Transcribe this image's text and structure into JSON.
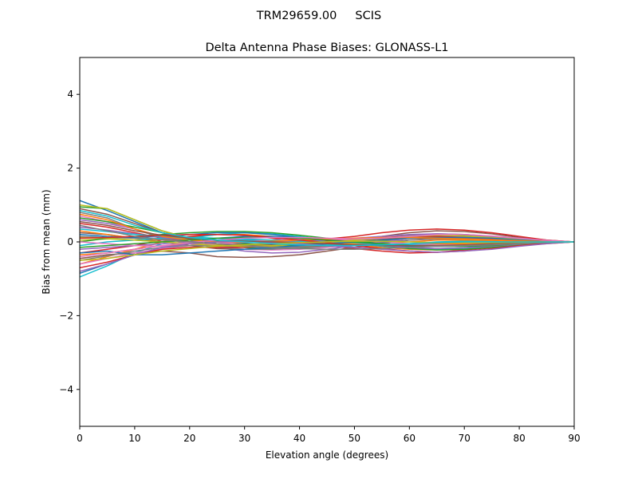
{
  "chart_data": {
    "type": "line",
    "suptitle": "TRM29659.00     SCIS",
    "title": "Delta Antenna Phase Biases: GLONASS-L1",
    "xlabel": "Elevation angle (degrees)",
    "ylabel": "Bias from mean (mm)",
    "xlim": [
      0,
      90
    ],
    "ylim": [
      -5,
      5
    ],
    "xticks": [
      0,
      10,
      20,
      30,
      40,
      50,
      60,
      70,
      80,
      90
    ],
    "yticks": [
      -4,
      -2,
      0,
      2,
      4
    ],
    "ytick_labels": [
      "−4",
      "−2",
      "0",
      "2",
      "4"
    ],
    "grid": false,
    "legend": "none",
    "x": [
      0,
      5,
      10,
      15,
      20,
      25,
      30,
      35,
      40,
      45,
      50,
      55,
      60,
      65,
      70,
      75,
      80,
      85,
      90
    ],
    "series": [
      {
        "color": "#1f77b4",
        "values": [
          1.12,
          0.85,
          0.55,
          0.25,
          0.05,
          -0.1,
          -0.15,
          -0.18,
          -0.15,
          -0.1,
          -0.05,
          0.02,
          0.1,
          0.15,
          0.14,
          0.1,
          0.05,
          0.02,
          0.0
        ]
      },
      {
        "color": "#ff7f0e",
        "values": [
          -0.6,
          -0.4,
          -0.2,
          0.0,
          0.12,
          0.2,
          0.2,
          0.15,
          0.08,
          0.0,
          -0.08,
          -0.15,
          -0.2,
          -0.22,
          -0.2,
          -0.15,
          -0.1,
          -0.05,
          0.0
        ]
      },
      {
        "color": "#2ca02c",
        "values": [
          0.95,
          0.9,
          0.6,
          0.3,
          0.1,
          -0.05,
          -0.15,
          -0.2,
          -0.18,
          -0.12,
          -0.05,
          0.05,
          0.15,
          0.2,
          0.18,
          0.12,
          0.06,
          0.02,
          0.0
        ]
      },
      {
        "color": "#d62728",
        "values": [
          -0.3,
          -0.2,
          -0.1,
          0.05,
          0.15,
          0.2,
          0.18,
          0.1,
          0.0,
          -0.1,
          -0.18,
          -0.25,
          -0.3,
          -0.28,
          -0.22,
          -0.15,
          -0.08,
          -0.03,
          0.0
        ]
      },
      {
        "color": "#9467bd",
        "values": [
          0.6,
          0.5,
          0.35,
          0.15,
          0.0,
          -0.15,
          -0.25,
          -0.3,
          -0.28,
          -0.2,
          -0.1,
          0.0,
          0.1,
          0.15,
          0.14,
          0.1,
          0.06,
          0.02,
          0.0
        ]
      },
      {
        "color": "#8c564b",
        "values": [
          0.25,
          0.2,
          0.1,
          0.0,
          -0.1,
          -0.18,
          -0.2,
          -0.15,
          -0.08,
          0.0,
          0.08,
          0.15,
          0.25,
          0.3,
          0.28,
          0.22,
          0.12,
          0.05,
          0.0
        ]
      },
      {
        "color": "#e377c2",
        "values": [
          0.7,
          0.55,
          0.35,
          0.15,
          0.0,
          -0.12,
          -0.2,
          -0.22,
          -0.2,
          -0.15,
          -0.08,
          0.0,
          0.05,
          0.08,
          0.08,
          0.06,
          0.03,
          0.01,
          0.0
        ]
      },
      {
        "color": "#7f7f7f",
        "values": [
          0.8,
          0.65,
          0.35,
          0.1,
          -0.05,
          -0.15,
          -0.2,
          -0.2,
          -0.15,
          -0.08,
          0.0,
          0.1,
          0.18,
          0.22,
          0.2,
          0.15,
          0.08,
          0.03,
          0.0
        ]
      },
      {
        "color": "#bcbd22",
        "values": [
          0.05,
          0.08,
          0.05,
          0.0,
          -0.05,
          -0.08,
          -0.1,
          -0.08,
          -0.05,
          0.0,
          0.05,
          0.1,
          0.12,
          0.12,
          0.1,
          0.07,
          0.04,
          0.01,
          0.0
        ]
      },
      {
        "color": "#17becf",
        "values": [
          -0.95,
          -0.65,
          -0.3,
          -0.05,
          0.1,
          0.2,
          0.25,
          0.22,
          0.15,
          0.05,
          -0.05,
          -0.12,
          -0.18,
          -0.2,
          -0.18,
          -0.12,
          -0.06,
          -0.02,
          0.0
        ]
      },
      {
        "color": "#1f77b4",
        "values": [
          -0.85,
          -0.6,
          -0.35,
          -0.15,
          0.0,
          0.1,
          0.15,
          0.15,
          0.12,
          0.05,
          -0.02,
          -0.1,
          -0.15,
          -0.18,
          -0.16,
          -0.1,
          -0.05,
          -0.02,
          0.0
        ]
      },
      {
        "color": "#ff7f0e",
        "values": [
          0.3,
          0.2,
          0.1,
          0.05,
          0.0,
          -0.05,
          -0.1,
          -0.12,
          -0.12,
          -0.1,
          -0.08,
          -0.06,
          -0.05,
          -0.05,
          -0.05,
          -0.04,
          -0.03,
          -0.01,
          0.0
        ]
      },
      {
        "color": "#2ca02c",
        "values": [
          0.0,
          0.1,
          0.15,
          0.2,
          0.25,
          0.28,
          0.28,
          0.25,
          0.18,
          0.1,
          0.0,
          -0.1,
          -0.18,
          -0.22,
          -0.2,
          -0.15,
          -0.08,
          -0.03,
          0.0
        ]
      },
      {
        "color": "#d62728",
        "values": [
          0.5,
          0.4,
          0.25,
          0.1,
          0.0,
          -0.05,
          -0.08,
          -0.05,
          0.0,
          0.08,
          0.15,
          0.25,
          0.32,
          0.35,
          0.32,
          0.25,
          0.15,
          0.05,
          0.0
        ]
      },
      {
        "color": "#9467bd",
        "values": [
          -0.2,
          -0.15,
          -0.1,
          -0.05,
          0.0,
          0.05,
          0.05,
          0.05,
          0.02,
          0.0,
          -0.05,
          -0.1,
          -0.15,
          -0.18,
          -0.16,
          -0.12,
          -0.06,
          -0.02,
          0.0
        ]
      },
      {
        "color": "#8c564b",
        "values": [
          -0.45,
          -0.35,
          -0.3,
          -0.25,
          -0.3,
          -0.4,
          -0.42,
          -0.4,
          -0.35,
          -0.25,
          -0.15,
          -0.05,
          0.05,
          0.1,
          0.1,
          0.08,
          0.05,
          0.02,
          0.0
        ]
      },
      {
        "color": "#e377c2",
        "values": [
          -0.6,
          -0.45,
          -0.3,
          -0.18,
          -0.1,
          -0.05,
          0.0,
          0.02,
          0.02,
          0.0,
          -0.02,
          -0.05,
          -0.08,
          -0.1,
          -0.1,
          -0.08,
          -0.05,
          -0.02,
          0.0
        ]
      },
      {
        "color": "#7f7f7f",
        "values": [
          0.15,
          0.12,
          0.1,
          0.08,
          0.05,
          0.0,
          -0.05,
          -0.1,
          -0.12,
          -0.12,
          -0.1,
          -0.08,
          -0.05,
          -0.02,
          0.0,
          0.0,
          0.0,
          0.0,
          0.0
        ]
      },
      {
        "color": "#bcbd22",
        "values": [
          1.0,
          0.9,
          0.6,
          0.3,
          0.1,
          -0.05,
          -0.1,
          -0.12,
          -0.1,
          -0.05,
          0.0,
          0.05,
          0.1,
          0.12,
          0.12,
          0.1,
          0.05,
          0.02,
          0.0
        ]
      },
      {
        "color": "#17becf",
        "values": [
          -0.1,
          0.0,
          0.05,
          0.1,
          0.12,
          0.1,
          0.05,
          0.0,
          -0.05,
          -0.08,
          -0.1,
          -0.08,
          -0.05,
          0.0,
          0.02,
          0.02,
          0.01,
          0.0,
          0.0
        ]
      },
      {
        "color": "#1f77b4",
        "values": [
          0.2,
          0.15,
          0.12,
          0.15,
          0.2,
          0.25,
          0.25,
          0.2,
          0.12,
          0.05,
          -0.02,
          -0.08,
          -0.12,
          -0.12,
          -0.1,
          -0.08,
          -0.04,
          -0.01,
          0.0
        ]
      },
      {
        "color": "#ff7f0e",
        "values": [
          -0.35,
          -0.3,
          -0.2,
          -0.1,
          -0.05,
          0.0,
          0.02,
          0.0,
          -0.02,
          -0.05,
          -0.05,
          -0.02,
          0.0,
          0.05,
          0.05,
          0.04,
          0.02,
          0.01,
          0.0
        ]
      },
      {
        "color": "#2ca02c",
        "values": [
          0.65,
          0.55,
          0.4,
          0.25,
          0.12,
          0.02,
          -0.05,
          -0.08,
          -0.08,
          -0.05,
          0.0,
          0.05,
          0.1,
          0.12,
          0.12,
          0.1,
          0.06,
          0.02,
          0.0
        ]
      },
      {
        "color": "#d62728",
        "values": [
          -0.7,
          -0.55,
          -0.35,
          -0.2,
          -0.15,
          -0.15,
          -0.15,
          -0.1,
          -0.05,
          0.02,
          0.08,
          0.12,
          0.15,
          0.15,
          0.12,
          0.08,
          0.04,
          0.01,
          0.0
        ]
      },
      {
        "color": "#9467bd",
        "values": [
          0.4,
          0.32,
          0.22,
          0.12,
          0.05,
          0.0,
          -0.02,
          -0.02,
          0.0,
          0.05,
          0.1,
          0.15,
          0.2,
          0.22,
          0.2,
          0.15,
          0.08,
          0.03,
          0.0
        ]
      },
      {
        "color": "#8c564b",
        "values": [
          0.9,
          0.75,
          0.5,
          0.25,
          0.08,
          -0.05,
          -0.1,
          -0.08,
          -0.05,
          0.0,
          0.05,
          0.08,
          0.1,
          0.1,
          0.08,
          0.06,
          0.03,
          0.01,
          0.0
        ]
      },
      {
        "color": "#e377c2",
        "values": [
          0.0,
          -0.05,
          -0.1,
          -0.12,
          -0.1,
          -0.05,
          0.0,
          0.05,
          0.08,
          0.08,
          0.05,
          0.0,
          -0.05,
          -0.08,
          -0.08,
          -0.06,
          -0.03,
          -0.01,
          0.0
        ]
      },
      {
        "color": "#7f7f7f",
        "values": [
          -0.5,
          -0.38,
          -0.25,
          -0.15,
          -0.1,
          -0.1,
          -0.12,
          -0.15,
          -0.15,
          -0.12,
          -0.08,
          -0.02,
          0.05,
          0.08,
          0.08,
          0.06,
          0.03,
          0.01,
          0.0
        ]
      },
      {
        "color": "#bcbd22",
        "values": [
          0.12,
          0.1,
          0.05,
          0.0,
          -0.05,
          -0.1,
          -0.12,
          -0.1,
          -0.05,
          0.0,
          0.05,
          0.1,
          0.15,
          0.18,
          0.16,
          0.12,
          0.06,
          0.02,
          0.0
        ]
      },
      {
        "color": "#17becf",
        "values": [
          0.35,
          0.28,
          0.2,
          0.15,
          0.12,
          0.1,
          0.08,
          0.05,
          0.02,
          0.0,
          -0.02,
          -0.05,
          -0.08,
          -0.1,
          -0.1,
          -0.08,
          -0.05,
          -0.02,
          0.0
        ]
      },
      {
        "color": "#1f77b4",
        "values": [
          -0.3,
          -0.25,
          -0.35,
          -0.35,
          -0.3,
          -0.25,
          -0.2,
          -0.15,
          -0.1,
          -0.05,
          0.0,
          0.05,
          0.1,
          0.12,
          0.12,
          0.1,
          0.05,
          0.02,
          0.0
        ]
      },
      {
        "color": "#ff7f0e",
        "values": [
          0.75,
          0.6,
          0.35,
          0.15,
          0.05,
          0.0,
          0.0,
          0.02,
          0.05,
          0.08,
          0.1,
          0.12,
          0.12,
          0.1,
          0.08,
          0.06,
          0.03,
          0.01,
          0.0
        ]
      },
      {
        "color": "#2ca02c",
        "values": [
          -0.15,
          -0.1,
          -0.05,
          0.0,
          0.05,
          0.1,
          0.12,
          0.12,
          0.1,
          0.05,
          0.0,
          -0.05,
          -0.1,
          -0.12,
          -0.12,
          -0.1,
          -0.05,
          -0.02,
          0.0
        ]
      },
      {
        "color": "#d62728",
        "values": [
          0.1,
          0.12,
          0.15,
          0.18,
          0.2,
          0.2,
          0.18,
          0.12,
          0.05,
          -0.02,
          -0.1,
          -0.18,
          -0.25,
          -0.28,
          -0.25,
          -0.18,
          -0.1,
          -0.04,
          0.0
        ]
      },
      {
        "color": "#9467bd",
        "values": [
          -0.8,
          -0.6,
          -0.35,
          -0.15,
          -0.05,
          0.0,
          0.02,
          0.0,
          -0.05,
          -0.1,
          -0.15,
          -0.2,
          -0.25,
          -0.28,
          -0.25,
          -0.2,
          -0.12,
          -0.05,
          0.0
        ]
      },
      {
        "color": "#8c564b",
        "values": [
          0.55,
          0.45,
          0.3,
          0.18,
          0.1,
          0.05,
          0.02,
          0.0,
          -0.02,
          -0.05,
          -0.08,
          -0.1,
          -0.1,
          -0.1,
          -0.08,
          -0.05,
          -0.03,
          -0.01,
          0.0
        ]
      },
      {
        "color": "#e377c2",
        "values": [
          -0.4,
          -0.3,
          -0.2,
          -0.1,
          -0.02,
          0.05,
          0.1,
          0.12,
          0.12,
          0.1,
          0.08,
          0.1,
          0.15,
          0.2,
          0.2,
          0.16,
          0.1,
          0.04,
          0.0
        ]
      },
      {
        "color": "#7f7f7f",
        "values": [
          0.45,
          0.3,
          0.15,
          0.05,
          0.0,
          -0.05,
          -0.1,
          -0.15,
          -0.18,
          -0.2,
          -0.2,
          -0.18,
          -0.15,
          -0.12,
          -0.1,
          -0.08,
          -0.05,
          -0.02,
          0.0
        ]
      },
      {
        "color": "#bcbd22",
        "values": [
          -0.5,
          -0.45,
          -0.35,
          -0.25,
          -0.18,
          -0.12,
          -0.08,
          -0.05,
          -0.02,
          0.0,
          0.02,
          0.02,
          0.0,
          -0.02,
          -0.02,
          -0.02,
          -0.01,
          0.0,
          0.0
        ]
      },
      {
        "color": "#17becf",
        "values": [
          0.85,
          0.7,
          0.45,
          0.25,
          0.12,
          0.05,
          0.0,
          -0.05,
          -0.08,
          -0.1,
          -0.1,
          -0.08,
          -0.05,
          -0.02,
          0.0,
          0.0,
          0.0,
          0.0,
          0.0
        ]
      }
    ]
  }
}
